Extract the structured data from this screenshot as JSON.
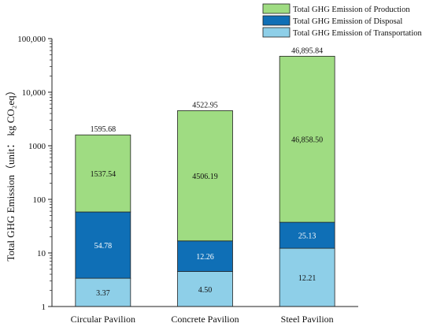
{
  "chart_data": {
    "type": "bar",
    "stacked": true,
    "title": "",
    "ylabel": "Total GHG Emission（unit： kg CO₂eq）",
    "xlabel": "",
    "yscale": "log",
    "ylim": [
      1,
      100000
    ],
    "yticks": [
      1,
      10,
      100,
      1000,
      10000,
      100000
    ],
    "ytick_labels": [
      "1",
      "10",
      "100",
      "1000",
      "10,000",
      "100,000"
    ],
    "categories": [
      "Circular Pavilion",
      "Concrete Pavilion",
      "Steel Pavilion"
    ],
    "series": [
      {
        "name": "Total GHG Emission of Transportation",
        "color": "#8ecfe8",
        "label_color": "#111111",
        "values": [
          3.37,
          4.5,
          12.21
        ],
        "labels": [
          "3.37",
          "4.50",
          "12.21"
        ]
      },
      {
        "name": "Total GHG Emission of Disposal",
        "color": "#0f6fb6",
        "label_color": "#ffffff",
        "values": [
          54.78,
          12.26,
          25.13
        ],
        "labels": [
          "54.78",
          "12.26",
          "25.13"
        ]
      },
      {
        "name": "Total GHG Emission of Production",
        "color": "#9fdc82",
        "label_color": "#111111",
        "values": [
          1537.54,
          4506.19,
          46858.5
        ],
        "labels": [
          "1537.54",
          "4506.19",
          "46,858.50"
        ]
      }
    ],
    "totals": [
      1595.68,
      4522.95,
      46895.84
    ],
    "total_labels": [
      "1595.68",
      "4522.95",
      "46,895.84"
    ],
    "legend": {
      "placement": "top-right",
      "order": [
        "Total GHG Emission of Production",
        "Total GHG Emission of Disposal",
        "Total GHG Emission of Transportation"
      ]
    },
    "grid": false
  }
}
